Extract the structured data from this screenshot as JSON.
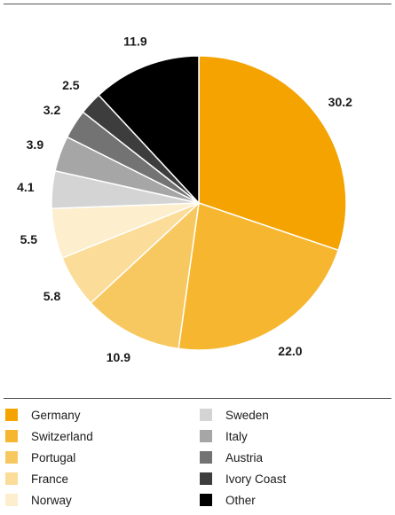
{
  "chart_data": {
    "type": "pie",
    "categories": [
      "Germany",
      "Switzerland",
      "Portugal",
      "France",
      "Norway",
      "Sweden",
      "Italy",
      "Austria",
      "Ivory Coast",
      "Other"
    ],
    "values": [
      30.2,
      22.0,
      10.9,
      5.8,
      5.5,
      4.1,
      3.9,
      3.2,
      2.5,
      11.9
    ],
    "value_labels": [
      "30.2",
      "22.0",
      "10.9",
      "5.8",
      "5.5",
      "4.1",
      "3.9",
      "3.2",
      "2.5",
      "11.9"
    ],
    "colors": [
      "#f4a300",
      "#f6b630",
      "#f8c860",
      "#fbdc99",
      "#fdeecd",
      "#d4d4d4",
      "#a6a6a6",
      "#737373",
      "#3d3d3d",
      "#000000"
    ],
    "start_angle_degrees": 0,
    "direction": "clockwise",
    "legend_position": "bottom"
  },
  "legend": {
    "items": [
      {
        "label": "Germany",
        "color": "#f4a300"
      },
      {
        "label": "Switzerland",
        "color": "#f6b630"
      },
      {
        "label": "Portugal",
        "color": "#f8c860"
      },
      {
        "label": "France",
        "color": "#fbdc99"
      },
      {
        "label": "Norway",
        "color": "#fdeecd"
      },
      {
        "label": "Sweden",
        "color": "#d4d4d4"
      },
      {
        "label": "Italy",
        "color": "#a6a6a6"
      },
      {
        "label": "Austria",
        "color": "#737373"
      },
      {
        "label": "Ivory Coast",
        "color": "#3d3d3d"
      },
      {
        "label": "Other",
        "color": "#000000"
      }
    ]
  }
}
